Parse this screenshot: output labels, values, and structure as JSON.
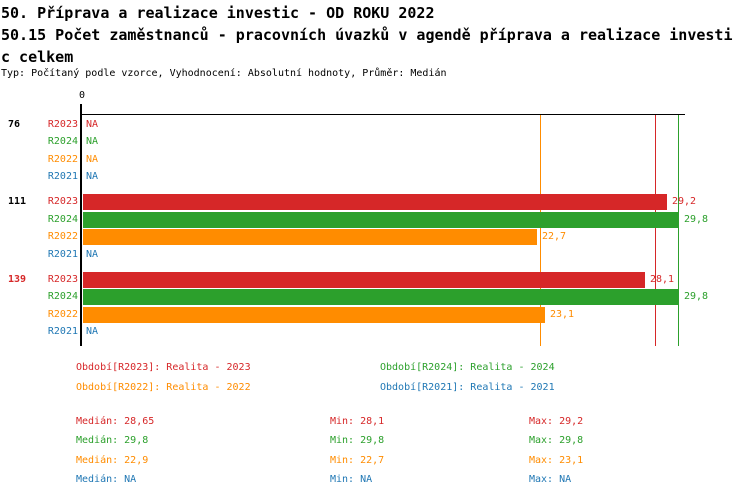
{
  "header": {
    "title_line1": "50. Příprava a realizace investic - OD ROKU 2022",
    "title_line2": "50.15 Počet zaměstnanců - pracovních úvazků v agendě příprava a realizace investi",
    "title_line3": "c celkem",
    "meta_line": "Typ: Počítaný podle vzorce, Vyhodnocení: Absolutní hodnoty, Průměr: Medián"
  },
  "colors": {
    "R2023": "#d62728",
    "R2024": "#2ca02c",
    "R2022": "#ff8c00",
    "R2021": "#1f77b4",
    "axis": "#000000",
    "group_label_default": "#000000",
    "group_label_highlight": "#d62728"
  },
  "chart_data": {
    "type": "bar",
    "orientation": "horizontal",
    "x_axis": {
      "zero_label": "0",
      "min": 0,
      "implied_max": 30
    },
    "grid": false,
    "series_order": [
      "R2023",
      "R2024",
      "R2022",
      "R2021"
    ],
    "groups": [
      {
        "label": "76",
        "highlight": false,
        "rows": [
          {
            "series": "R2023",
            "value": null,
            "display": "NA"
          },
          {
            "series": "R2024",
            "value": null,
            "display": "NA"
          },
          {
            "series": "R2022",
            "value": null,
            "display": "NA"
          },
          {
            "series": "R2021",
            "value": null,
            "display": "NA"
          }
        ]
      },
      {
        "label": "111",
        "highlight": false,
        "rows": [
          {
            "series": "R2023",
            "value": 29.2,
            "display": "29,2"
          },
          {
            "series": "R2024",
            "value": 29.8,
            "display": "29,8"
          },
          {
            "series": "R2022",
            "value": 22.7,
            "display": "22,7"
          },
          {
            "series": "R2021",
            "value": null,
            "display": "NA"
          }
        ]
      },
      {
        "label": "139",
        "highlight": true,
        "rows": [
          {
            "series": "R2023",
            "value": 28.1,
            "display": "28,1"
          },
          {
            "series": "R2024",
            "value": 29.8,
            "display": "29,8"
          },
          {
            "series": "R2022",
            "value": 23.1,
            "display": "23,1"
          },
          {
            "series": "R2021",
            "value": null,
            "display": "NA"
          }
        ]
      }
    ],
    "median_lines": [
      {
        "series": "R2023",
        "value": 28.65
      },
      {
        "series": "R2024",
        "value": 29.8
      },
      {
        "series": "R2022",
        "value": 22.9
      }
    ],
    "legend": [
      {
        "series": "R2023",
        "label": "Období[R2023]: Realita - 2023"
      },
      {
        "series": "R2024",
        "label": "Období[R2024]: Realita - 2024"
      },
      {
        "series": "R2022",
        "label": "Období[R2022]: Realita - 2022"
      },
      {
        "series": "R2021",
        "label": "Období[R2021]: Realita - 2021"
      }
    ],
    "stats_labels": {
      "median": "Medián",
      "min": "Min",
      "max": "Max"
    },
    "stats": [
      {
        "series": "R2023",
        "median": "28,65",
        "min": "28,1",
        "max": "29,2"
      },
      {
        "series": "R2024",
        "median": "29,8",
        "min": "29,8",
        "max": "29,8"
      },
      {
        "series": "R2022",
        "median": "22,9",
        "min": "22,7",
        "max": "23,1"
      },
      {
        "series": "R2021",
        "median": "NA",
        "min": "NA",
        "max": "NA"
      }
    ]
  }
}
